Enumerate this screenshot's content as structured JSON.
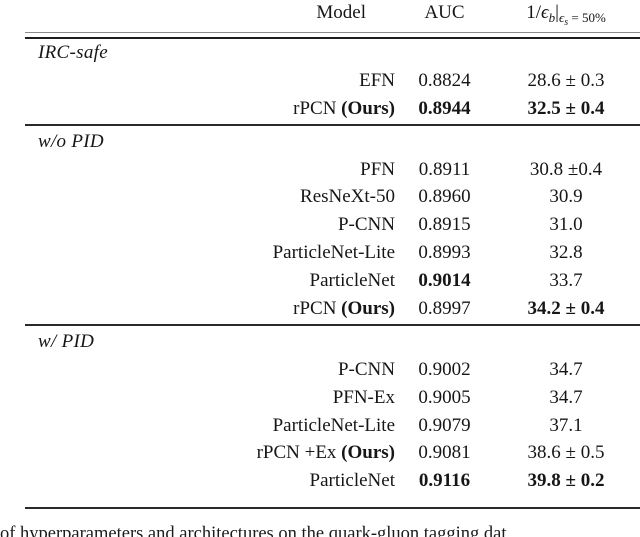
{
  "header": {
    "model": "Model",
    "auc": "AUC",
    "metric": {
      "pre": "1/",
      "eps_b": "ϵ",
      "sub_b": "b",
      "bar": "|",
      "sub_eps": "ϵ",
      "sub_s": "s",
      "cond": " = 50%"
    }
  },
  "sections": [
    {
      "label": "IRC-safe",
      "rows": [
        {
          "model": "EFN",
          "ours": "",
          "auc": "0.8824",
          "auc_bold": false,
          "metric": "28.6 ± 0.3",
          "metric_bold": false
        },
        {
          "model": "rPCN ",
          "ours": "(Ours)",
          "auc": "0.8944",
          "auc_bold": true,
          "metric": "32.5 ± 0.4",
          "metric_bold": true
        }
      ]
    },
    {
      "label": "w/o PID",
      "rows": [
        {
          "model": "PFN",
          "ours": "",
          "auc": "0.8911",
          "auc_bold": false,
          "metric": "30.8 ±0.4",
          "metric_bold": false
        },
        {
          "model": "ResNeXt-50",
          "ours": "",
          "auc": "0.8960",
          "auc_bold": false,
          "metric": "30.9",
          "metric_bold": false
        },
        {
          "model": "P-CNN",
          "ours": "",
          "auc": "0.8915",
          "auc_bold": false,
          "metric": "31.0",
          "metric_bold": false
        },
        {
          "model": "ParticleNet-Lite",
          "ours": "",
          "auc": "0.8993",
          "auc_bold": false,
          "metric": "32.8",
          "metric_bold": false
        },
        {
          "model": "ParticleNet",
          "ours": "",
          "auc": "0.9014",
          "auc_bold": true,
          "metric": "33.7",
          "metric_bold": false
        },
        {
          "model": "rPCN ",
          "ours": "(Ours)",
          "auc": "0.8997",
          "auc_bold": false,
          "metric": "34.2 ± 0.4",
          "metric_bold": true
        }
      ]
    },
    {
      "label": "w/ PID",
      "rows": [
        {
          "model": "P-CNN",
          "ours": "",
          "auc": "0.9002",
          "auc_bold": false,
          "metric": "34.7",
          "metric_bold": false
        },
        {
          "model": "PFN-Ex",
          "ours": "",
          "auc": "0.9005",
          "auc_bold": false,
          "metric": "34.7",
          "metric_bold": false
        },
        {
          "model": "ParticleNet-Lite",
          "ours": "",
          "auc": "0.9079",
          "auc_bold": false,
          "metric": "37.1",
          "metric_bold": false
        },
        {
          "model": "rPCN +Ex ",
          "ours": "(Ours)",
          "auc": "0.9081",
          "auc_bold": false,
          "metric": "38.6 ± 0.5",
          "metric_bold": false
        },
        {
          "model": "ParticleNet",
          "ours": "",
          "auc": "0.9116",
          "auc_bold": true,
          "metric": "39.8 ± 0.2",
          "metric_bold": true
        }
      ]
    }
  ],
  "caption": {
    "fragment": "of hyperparameters and architectures on the quark-gluon tagging dat"
  }
}
